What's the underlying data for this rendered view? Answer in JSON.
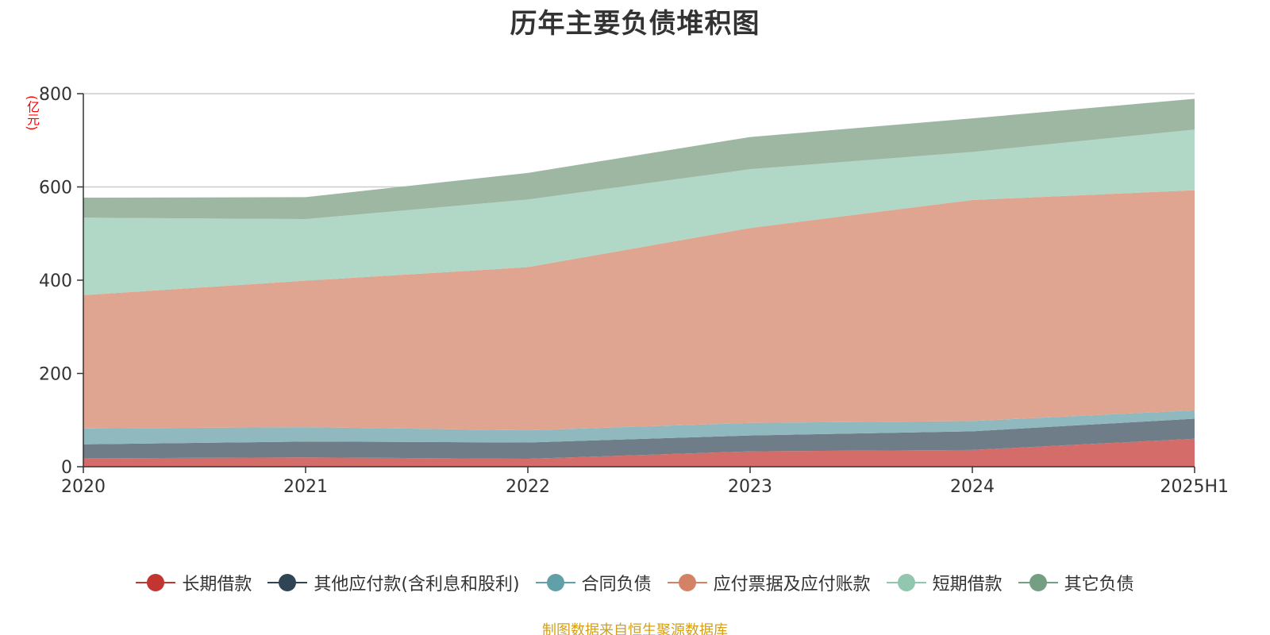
{
  "title": "历年主要负债堆积图",
  "unit_label": "(亿元)",
  "source": "制图数据来自恒生聚源数据库",
  "colors": {
    "axis": "#333333",
    "grid": "#cccccc",
    "title": "#333333",
    "unit": "#ff0000",
    "source": "#d4a017"
  },
  "chart_data": {
    "type": "area",
    "stacked": true,
    "title": "历年主要负债堆积图",
    "ylabel": "(亿元)",
    "categories": [
      "2020",
      "2021",
      "2022",
      "2023",
      "2024",
      "2025H1"
    ],
    "ylim": [
      0,
      800
    ],
    "yticks": [
      0,
      200,
      400,
      600,
      800
    ],
    "grid": true,
    "legend_position": "bottom",
    "series": [
      {
        "name": "长期借款",
        "color": "#c23531",
        "fill": "#d46c6a",
        "values": [
          18,
          20,
          17,
          33,
          36,
          60
        ]
      },
      {
        "name": "其他应付款(含利息和股利)",
        "color": "#2f4554",
        "fill": "#6e7d88",
        "values": [
          30,
          34,
          35,
          34,
          40,
          43
        ]
      },
      {
        "name": "合同负债",
        "color": "#61a0a8",
        "fill": "#90b8bf",
        "values": [
          34,
          31,
          26,
          27,
          22,
          18
        ]
      },
      {
        "name": "应付票据及应付账款",
        "color": "#d48265",
        "fill": "#dfa590",
        "values": [
          286,
          314,
          350,
          418,
          474,
          472
        ]
      },
      {
        "name": "短期借款",
        "color": "#91c7ae",
        "fill": "#b1d7c6",
        "values": [
          166,
          132,
          145,
          126,
          103,
          130
        ]
      },
      {
        "name": "其它负债",
        "color": "#749f83",
        "fill": "#9db7a3",
        "values": [
          43,
          47,
          57,
          69,
          72,
          66
        ]
      }
    ]
  }
}
